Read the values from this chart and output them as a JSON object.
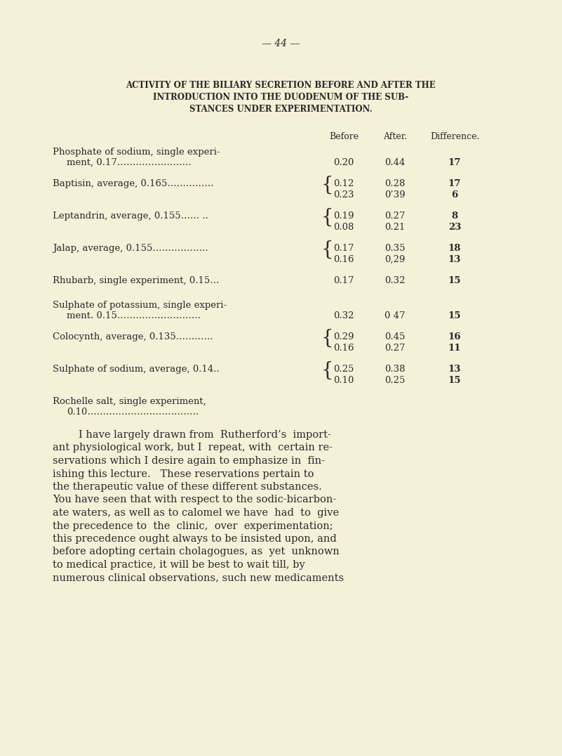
{
  "bg_color": "#f5f0d8",
  "page_number": "44",
  "title_lines": [
    "ACTIVITY OF THE BILIARY SECRETION BEFORE AND AFTER THE",
    "INTRODUCTION INTO THE DUODENUM OF THE SUB-",
    "STANCES UNDER EXPERIMENTATION."
  ],
  "col_headers": [
    "Before",
    "After.",
    "Difference."
  ],
  "text_color": "#2a2a2a",
  "title_fontsize": 8.5,
  "label_fontsize": 9.5,
  "data_fontsize": 9.5,
  "para_fontsize": 10.5,
  "paragraph_lines": [
    "        I have largely drawn from  Rutherford’s  import-",
    "ant physiological work, but I  repeat, with  certain re-",
    "servations which I desire again to emphasize in  fin-",
    "ishing this lecture.   These reservations pertain to",
    "the therapeutic value of these different substances.",
    "You have seen that with respect to the sodic-bicarbon-",
    "ate waters, as well as to calomel we have  had  to  give",
    "the precedence to  the  clinic,  over  experimentation;",
    "this precedence ought always to be insisted upon, and",
    "before adopting certain cholagogues, as  yet  unknown",
    "to medical practice, it will be best to wait till, by",
    "numerous clinical observations, such new medicaments"
  ]
}
